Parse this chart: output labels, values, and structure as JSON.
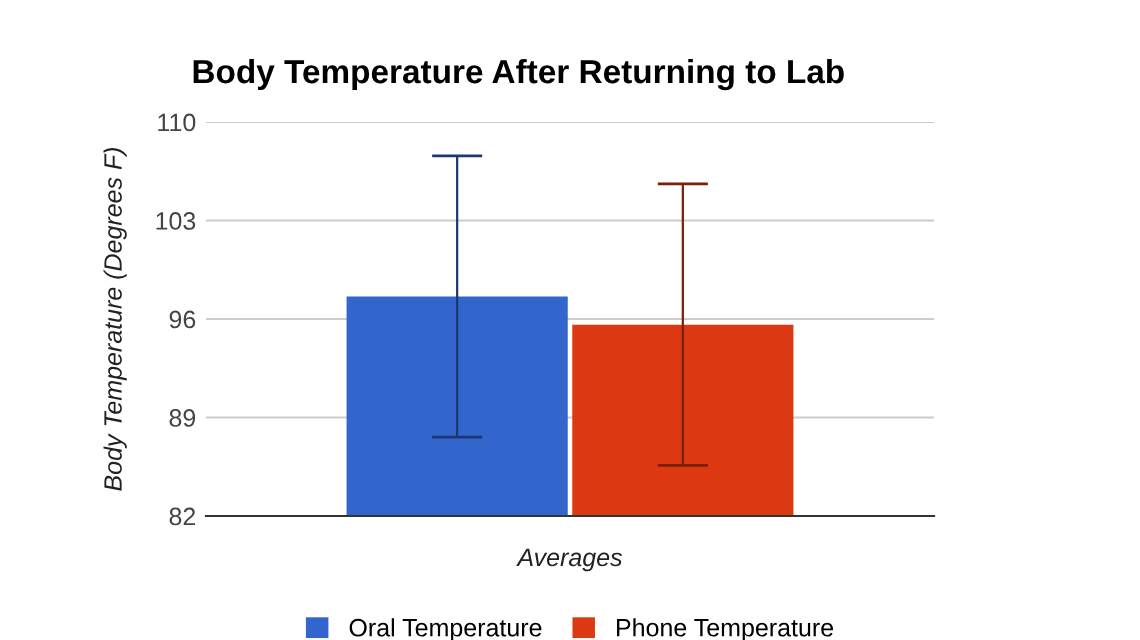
{
  "chart_data": {
    "type": "bar",
    "title": "Body Temperature After Returning to Lab",
    "xlabel": "Averages",
    "ylabel": "Body Temperature (Degrees F)",
    "categories": [
      null
    ],
    "series": [
      {
        "name": "Oral Temperature",
        "color": "#3366cc",
        "values": [
          97.6
        ],
        "errors": [
          10
        ]
      },
      {
        "name": "Phone Temperature",
        "color": "#dc3912",
        "values": [
          95.6
        ],
        "errors": [
          10
        ]
      }
    ],
    "ylim": [
      82,
      110
    ],
    "yticks": [
      82,
      89,
      96,
      103,
      110
    ],
    "grid": "y",
    "legend": "bottom"
  }
}
